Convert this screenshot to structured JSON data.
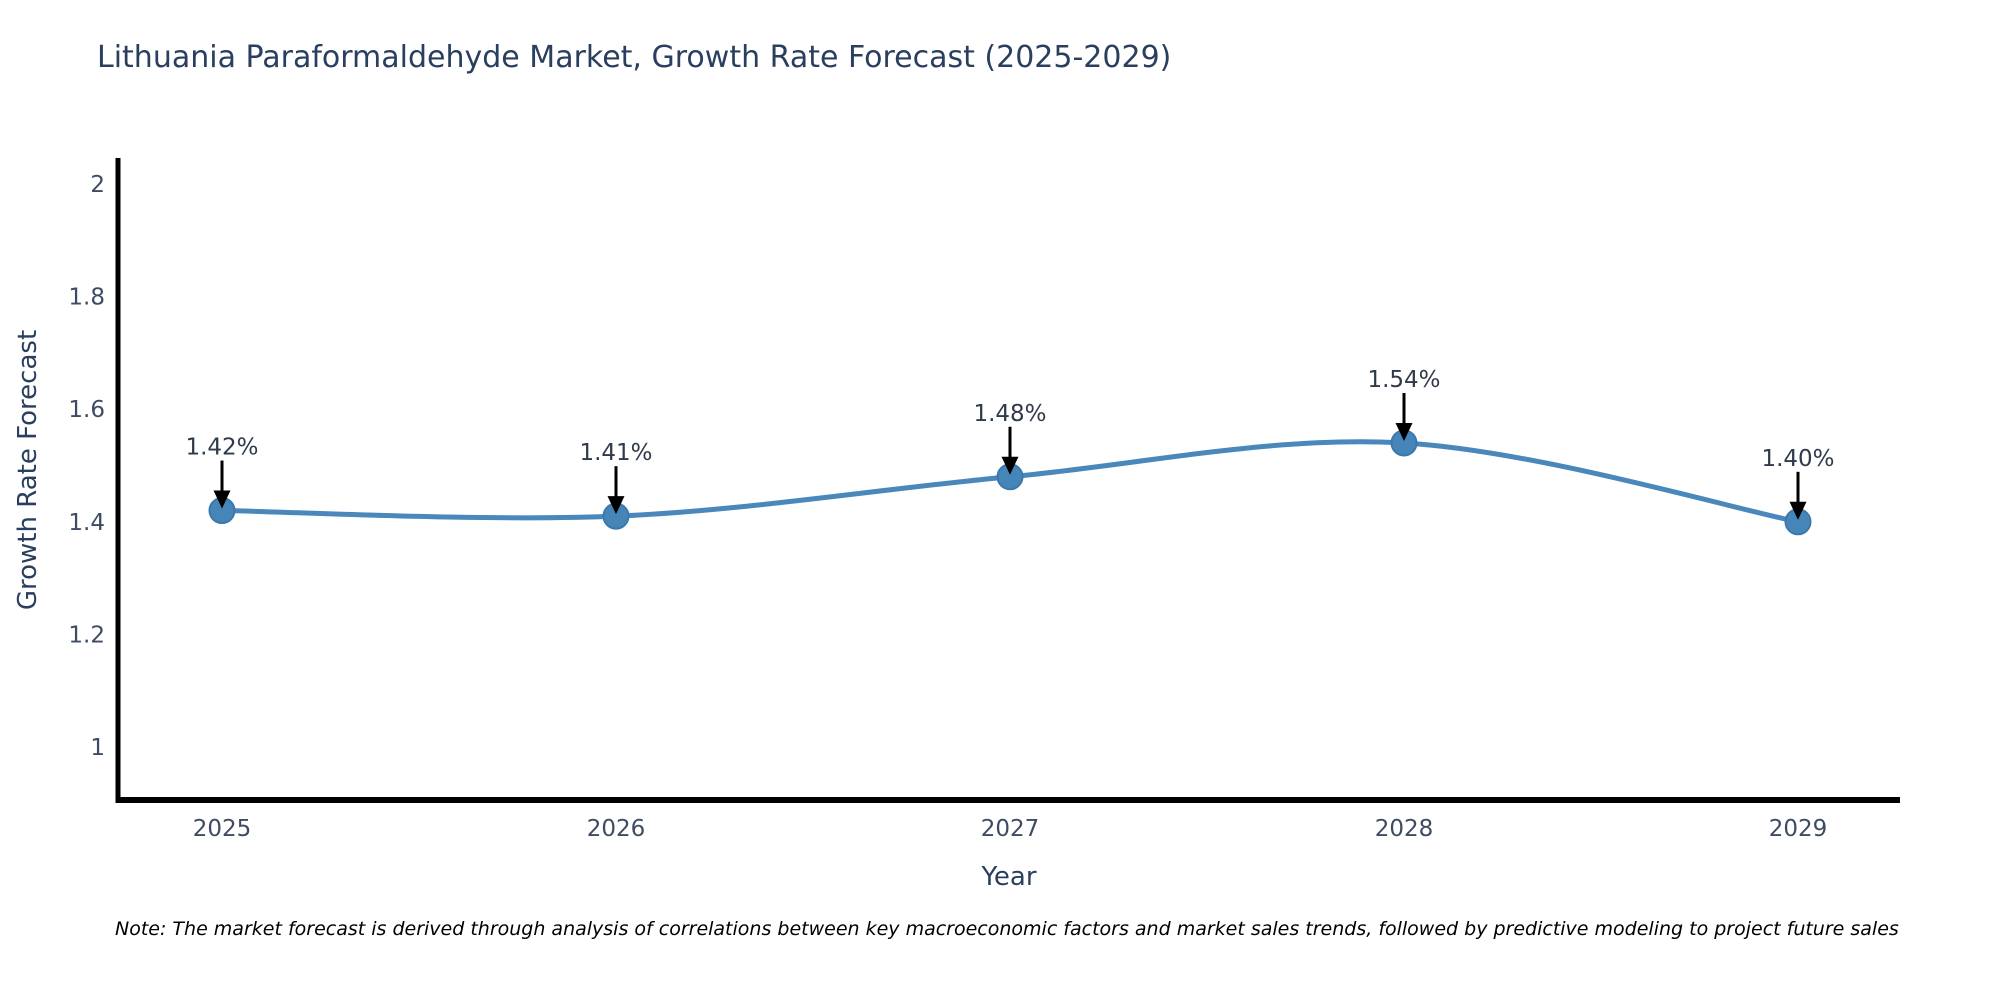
{
  "title": "Lithuania Paraformaldehyde Market, Growth Rate Forecast (2025-2029)",
  "note": "Note: The market forecast is derived through analysis of correlations between key macroeconomic factors and market sales trends, followed by predictive modeling to project future sales",
  "chart_data": {
    "type": "line",
    "title": "Lithuania Paraformaldehyde Market, Growth Rate Forecast (2025-2029)",
    "xlabel": "Year",
    "ylabel": "Growth Rate Forecast",
    "categories": [
      "2025",
      "2026",
      "2027",
      "2028",
      "2029"
    ],
    "series": [
      {
        "name": "Growth Rate Forecast",
        "values": [
          1.42,
          1.41,
          1.48,
          1.54,
          1.4
        ]
      }
    ],
    "point_labels": [
      "1.42%",
      "1.41%",
      "1.48%",
      "1.54%",
      "1.40%"
    ],
    "y_ticks": [
      "1",
      "1.2",
      "1.4",
      "1.6",
      "1.8",
      "2"
    ],
    "y_tick_values": [
      1,
      1.2,
      1.4,
      1.6,
      1.8,
      2
    ],
    "ylim": [
      0.9,
      2.05
    ],
    "grid": false,
    "smooth": true,
    "legend_position": "none",
    "colors": {
      "line": "#4a87ba",
      "marker_fill": "#4585b8",
      "marker_edge": "#3c78aa",
      "axis_line": "#000000",
      "title_text": "#2a3f5f",
      "tick_text": "#3d4c63",
      "annotation_text": "#2f3a4a",
      "annotation_arrow": "#000000"
    }
  }
}
